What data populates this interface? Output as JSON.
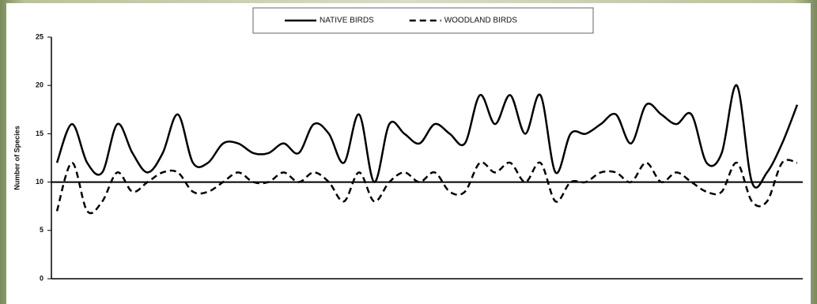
{
  "chart_data": {
    "type": "line",
    "y_label": "Number of Species",
    "categories": [
      null,
      null,
      null,
      null,
      null,
      null,
      null,
      null,
      null,
      null,
      null,
      null,
      null,
      null,
      null,
      null,
      null,
      null,
      null,
      null,
      null,
      null,
      null,
      null,
      null,
      null,
      null,
      null,
      null,
      null,
      null,
      null,
      null,
      null,
      null,
      null,
      null,
      null,
      null,
      null,
      null,
      null,
      null,
      null,
      null,
      null,
      null,
      null,
      null,
      null
    ],
    "series": [
      {
        "name": "NATIVE BIRDS",
        "color": "#000000",
        "dash": false,
        "values": [
          12,
          16,
          12,
          11,
          16,
          13,
          11,
          13,
          17,
          12,
          12,
          14,
          14,
          13,
          13,
          14,
          13,
          16,
          15,
          12,
          17,
          10,
          16,
          15,
          14,
          16,
          15,
          14,
          19,
          16,
          19,
          15,
          19,
          11,
          15,
          15,
          16,
          17,
          14,
          18,
          17,
          16,
          17,
          12,
          13,
          20,
          10,
          11,
          14,
          18
        ]
      },
      {
        "name": "WOODLAND BIRDS",
        "color": "#000000",
        "dash": true,
        "values": [
          7,
          12,
          7,
          8,
          11,
          9,
          10,
          11,
          11,
          9,
          9,
          10,
          11,
          10,
          10,
          11,
          10,
          11,
          10,
          8,
          11,
          8,
          10,
          11,
          10,
          11,
          9,
          9,
          12,
          11,
          12,
          10,
          12,
          8,
          10,
          10,
          11,
          11,
          10,
          12,
          10,
          11,
          10,
          9,
          9,
          12,
          8,
          8,
          12,
          12
        ]
      }
    ],
    "reference_line": 10,
    "ylim": [
      0,
      25
    ],
    "yticks": [
      0,
      5,
      10,
      15,
      20,
      25
    ],
    "legend": "top"
  }
}
